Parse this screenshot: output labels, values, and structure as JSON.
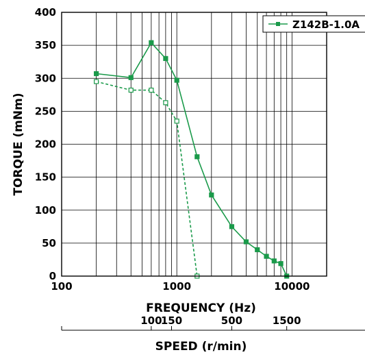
{
  "chart_data": {
    "type": "line",
    "x_scale": "log",
    "xlim": [
      100,
      20000
    ],
    "ylim": [
      0,
      400
    ],
    "xlabel": "FREQUENCY (Hz)",
    "ylabel": "TORQUE (mNm)",
    "x_tick_labels": [
      "100",
      "1000",
      "10000"
    ],
    "x_tick_values": [
      100,
      1000,
      10000
    ],
    "y_ticks": [
      0,
      50,
      100,
      150,
      200,
      250,
      300,
      350,
      400
    ],
    "grid": true,
    "legend_position": "top-right",
    "color": "#1a9a4a",
    "series": [
      {
        "name": "Z142B-1.0A",
        "line_style": "solid",
        "marker": "filled-square",
        "show_in_legend": true,
        "x": [
          200,
          400,
          600,
          800,
          1000,
          1500,
          2000,
          3000,
          4000,
          5000,
          6000,
          7000,
          8000,
          9000
        ],
        "y": [
          307,
          301,
          354,
          330,
          297,
          181,
          123,
          75,
          52,
          40,
          30,
          23,
          19,
          0
        ]
      },
      {
        "name": "",
        "line_style": "dashed",
        "marker": "open-square",
        "show_in_legend": false,
        "x": [
          200,
          400,
          600,
          800,
          1000,
          1500
        ],
        "y": [
          295,
          282,
          282,
          263,
          235,
          0
        ]
      }
    ],
    "secondary_axis": {
      "label": "SPEED (r/min)",
      "tick_labels": [
        "100",
        "150",
        "500",
        "1500"
      ],
      "tick_frequencies": [
        600,
        900,
        3000,
        9000
      ]
    }
  }
}
